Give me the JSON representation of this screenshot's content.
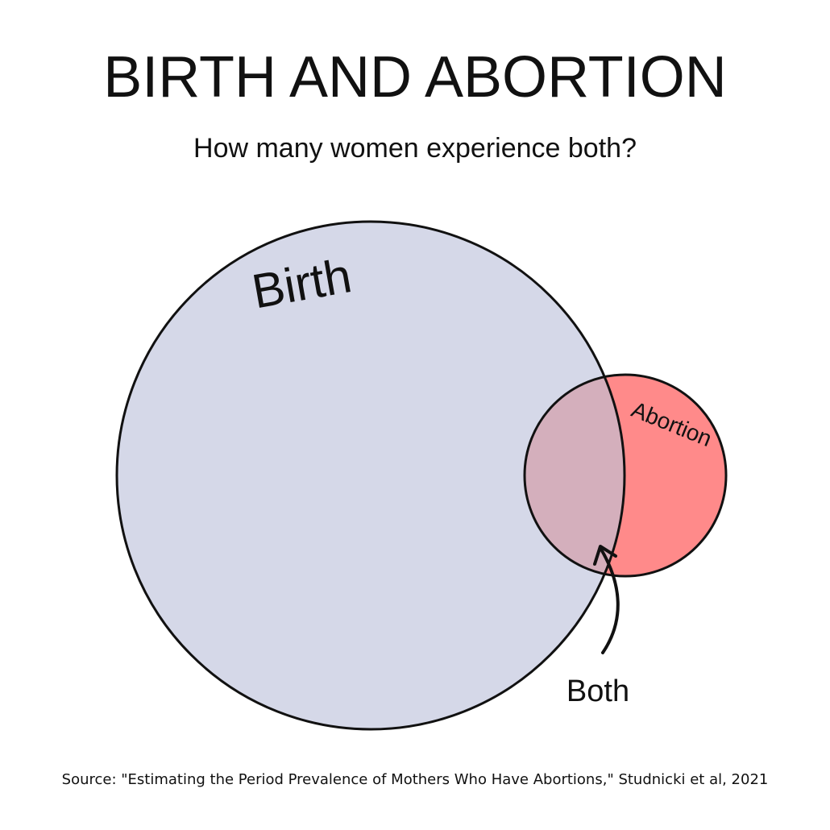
{
  "title": "BIRTH AND ABORTION",
  "subtitle": "How many women experience both?",
  "sets": [
    {
      "label": "Birth"
    },
    {
      "label": "Abortion"
    }
  ],
  "intersection": {
    "label": "Both"
  },
  "source": "Source: \"Estimating the Period Prevalence of Mothers Who Have Abortions,\" Studnicki et al, 2021"
}
